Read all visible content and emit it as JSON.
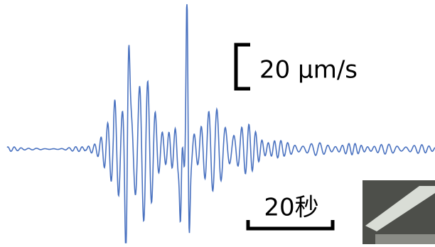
{
  "amplitude_scale": {
    "label": "20 μm/s"
  },
  "time_scale": {
    "label": "20秒"
  }
}
